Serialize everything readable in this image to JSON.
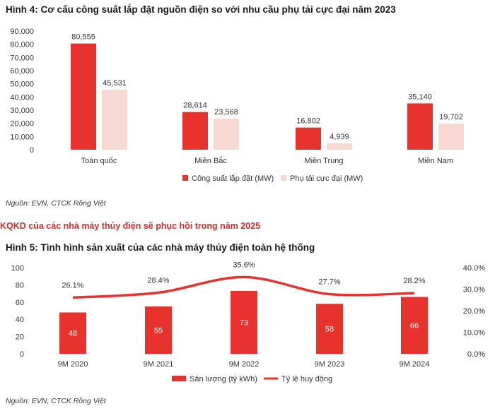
{
  "figure4": {
    "title": "Hình 4: Cơ cấu công suất lắp đặt nguồn điện so với nhu cầu phụ tải cực đại năm 2023",
    "source": "Nguồn: EVN, CTCK Rồng Việt"
  },
  "section": {
    "heading": "KQKD của các nhà máy thủy điện sẽ phục hồi trong năm 2025"
  },
  "figure5": {
    "title": "Hình 5: Tình hình sản xuất của các nhà máy thủy điện toàn hệ thống",
    "source": "Nguồn: EVN, CTCK Rồng Việt"
  },
  "colors": {
    "primary_bar": "#e8322d",
    "secondary_bar": "#f7d8d2",
    "line": "#e8322d"
  },
  "chart_data": [
    {
      "type": "bar",
      "title": "Hình 4: Cơ cấu công suất lắp đặt nguồn điện so với nhu cầu phụ tải cực đại năm 2023",
      "categories": [
        "Toàn quốc",
        "Miền Bắc",
        "Miền Trung",
        "Miền Nam"
      ],
      "series": [
        {
          "name": "Công suất lắp đặt (MW)",
          "values": [
            80555,
            28614,
            16802,
            35140
          ],
          "labels": [
            "80,555",
            "28,614",
            "16,802",
            "35,140"
          ]
        },
        {
          "name": "Phụ tải cực đại (MW)",
          "values": [
            45531,
            23568,
            4939,
            19702
          ],
          "labels": [
            "45,531",
            "23,568",
            "4,939",
            "19,702"
          ]
        }
      ],
      "ylim": [
        0,
        90000
      ],
      "yticks": [
        "0",
        "10,000",
        "20,000",
        "30,000",
        "40,000",
        "50,000",
        "60,000",
        "70,000",
        "80,000",
        "90,000"
      ],
      "legend_position": "bottom-right",
      "grid": false
    },
    {
      "type": "bar+line",
      "title": "Hình 5: Tình hình sản xuất của các nhà máy thủy điện toàn hệ thống",
      "categories": [
        "9M 2020",
        "9M 2021",
        "9M 2022",
        "9M 2023",
        "9M 2024"
      ],
      "bar_series": {
        "name": "Sản lượng (tỷ kWh)",
        "values": [
          48,
          55,
          73,
          58,
          66
        ],
        "labels": [
          "48",
          "55",
          "73",
          "58",
          "66"
        ]
      },
      "line_series": {
        "name": "Tỷ lệ huy động",
        "values": [
          26.1,
          28.4,
          35.6,
          27.7,
          28.2
        ],
        "labels": [
          "26.1%",
          "28.4%",
          "35.6%",
          "27.7%",
          "28.2%"
        ]
      },
      "ylim_left": [
        0,
        100
      ],
      "yticks_left": [
        "0",
        "20",
        "40",
        "60",
        "80",
        "100"
      ],
      "ylim_right": [
        0,
        40
      ],
      "yticks_right": [
        "0.0%",
        "10.0%",
        "20.0%",
        "30.0%",
        "40.0%"
      ],
      "legend_position": "bottom-center",
      "grid": false
    }
  ]
}
